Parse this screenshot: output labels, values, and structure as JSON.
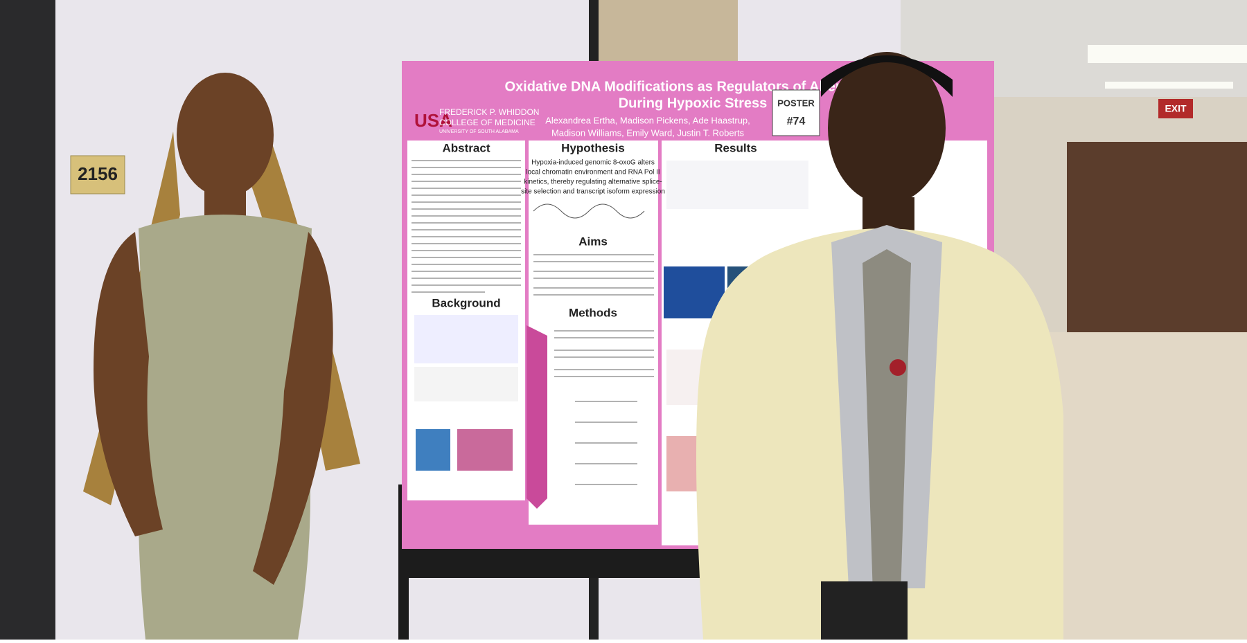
{
  "room_sign": "2156",
  "exit_sign": "EXIT",
  "poster": {
    "title_lines": [
      "Oxidative DNA Modifications as Regulators of Alternative",
      "During Hypoxic Stress"
    ],
    "institution": [
      "FREDERICK P. WHIDDON",
      "COLLEGE OF MEDICINE",
      "UNIVERSITY OF SOUTH ALABAMA"
    ],
    "authors": [
      "Alexandrea Ertha, Madison Pickens, Ade Haastrup,",
      "Madison Williams, Emily Ward, Justin T. Roberts"
    ],
    "badge": [
      "POSTER",
      "#74"
    ],
    "sections": {
      "abstract": "Abstract",
      "background": "Background",
      "hypothesis": "Hypothesis",
      "hypothesis_text": [
        "Hypoxia-induced genomic 8-oxoG alters",
        "local chromatin environment and RNA Pol II",
        "kinetics, thereby regulating alternative splice-",
        "site selection and transcript isoform expression"
      ],
      "aims": "Aims",
      "methods": "Methods",
      "results": "Results"
    }
  }
}
